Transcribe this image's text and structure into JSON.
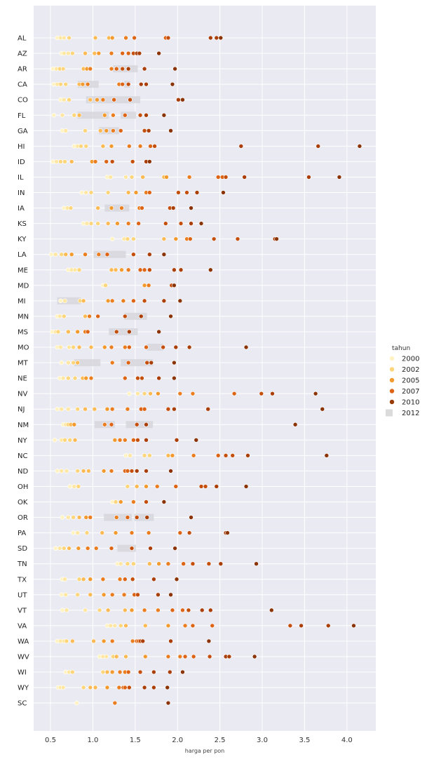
{
  "chart_data": {
    "type": "scatter",
    "xlabel": "harga per pon",
    "ylabel": "",
    "xlim": [
      0.3,
      4.2
    ],
    "xticks": [
      "0.5",
      "1.0",
      "1.5",
      "2.0",
      "2.5",
      "3.0",
      "3.5",
      "4.0"
    ],
    "grid": true,
    "legend_title": "tahun",
    "legend_position": "right",
    "legend": [
      {
        "label": "2000",
        "color": "#fff3c4"
      },
      {
        "label": "2002",
        "color": "#fdd57a"
      },
      {
        "label": "2005",
        "color": "#f39a2e"
      },
      {
        "label": "2007",
        "color": "#dd6414"
      },
      {
        "label": "2010",
        "color": "#9a3a06"
      },
      {
        "label": "2012",
        "color": "#b8b8b8"
      }
    ],
    "colors": {
      "c0": "#fff3c4",
      "c1": "#fee7a3",
      "c2": "#fdd57a",
      "c3": "#fcba55",
      "c4": "#f39a2e",
      "c5": "#ea7d1f",
      "c6": "#dd6414",
      "c7": "#c44f0c",
      "c8": "#a93e07",
      "c9": "#8a3305"
    },
    "categories": [
      "AL",
      "AZ",
      "AR",
      "CA",
      "CO",
      "FL",
      "GA",
      "HI",
      "ID",
      "IL",
      "IN",
      "IA",
      "KS",
      "KY",
      "LA",
      "ME",
      "MD",
      "MI",
      "MN",
      "MS",
      "MO",
      "MT",
      "NE",
      "NV",
      "NJ",
      "NM",
      "NY",
      "NC",
      "ND",
      "OH",
      "OK",
      "OR",
      "PA",
      "SD",
      "TN",
      "TX",
      "UT",
      "VT",
      "VA",
      "WA",
      "WV",
      "WI",
      "WY",
      "SC"
    ],
    "category_labels": [
      "AL",
      "AZ",
      "AR",
      "CA",
      "CO",
      "FL",
      "GA",
      "HI",
      "ID",
      "IL",
      "IN",
      "IA",
      "KS",
      "KY",
      "LA",
      "ME",
      "MD",
      "MI",
      "MN",
      "MS",
      "MO",
      "MT",
      "NE",
      "NV",
      "NJ",
      "NM",
      "NY",
      "NC",
      "ND",
      "OH",
      "OK",
      "OR",
      "PA",
      "SD",
      "TN",
      "TX",
      "UT",
      "VT",
      "VA",
      "WA",
      "WV",
      "WI",
      "WY",
      "SC"
    ],
    "points": [
      {
        "state": "AL",
        "x": [
          0.58,
          0.62,
          0.66,
          0.72,
          1.03,
          1.19,
          1.23,
          1.39,
          1.49,
          1.86,
          1.89,
          2.39,
          2.46,
          2.51
        ]
      },
      {
        "state": "AZ",
        "x": [
          0.63,
          0.66,
          0.71,
          0.76,
          0.91,
          1.02,
          1.07,
          1.22,
          1.35,
          1.42,
          1.48,
          1.52,
          1.55,
          1.78
        ]
      },
      {
        "state": "AR",
        "x": [
          0.53,
          0.57,
          0.61,
          0.65,
          0.89,
          0.93,
          0.97,
          1.22,
          1.28,
          1.35,
          1.42,
          1.61,
          1.97
        ]
      },
      {
        "state": "CA",
        "x": [
          0.54,
          0.58,
          0.62,
          0.68,
          0.84,
          0.88,
          0.94,
          1.31,
          1.35,
          1.42,
          1.57,
          1.63,
          1.94
        ]
      },
      {
        "state": "CO",
        "x": [
          0.62,
          0.66,
          0.72,
          0.97,
          1.05,
          1.12,
          1.25,
          1.44,
          2.01,
          2.06
        ]
      },
      {
        "state": "FL",
        "x": [
          0.54,
          0.64,
          0.78,
          0.84,
          1.14,
          1.24,
          1.38,
          1.56,
          1.63,
          1.84
        ]
      },
      {
        "state": "GA",
        "x": [
          0.64,
          0.68,
          0.91,
          1.09,
          1.16,
          1.24,
          1.33,
          1.61,
          1.66,
          1.92
        ]
      },
      {
        "state": "HI",
        "x": [
          0.78,
          0.82,
          0.86,
          0.92,
          1.12,
          1.22,
          1.43,
          1.56,
          1.68,
          1.73,
          2.75,
          3.66,
          4.15
        ]
      },
      {
        "state": "ID",
        "x": [
          0.53,
          0.57,
          0.62,
          0.67,
          0.75,
          0.99,
          1.03,
          1.16,
          1.23,
          1.47,
          1.63,
          1.67
        ]
      },
      {
        "state": "IL",
        "x": [
          1.17,
          1.21,
          1.39,
          1.46,
          1.59,
          1.84,
          1.87,
          2.14,
          2.48,
          2.53,
          2.57,
          2.79,
          3.55,
          3.91
        ]
      },
      {
        "state": "IN",
        "x": [
          0.87,
          0.92,
          0.98,
          1.18,
          1.42,
          1.51,
          1.63,
          1.67,
          2.01,
          2.11,
          2.23,
          2.54
        ]
      },
      {
        "state": "IA",
        "x": [
          0.66,
          0.7,
          0.74,
          1.06,
          1.22,
          1.34,
          1.55,
          1.58,
          1.91,
          1.95,
          2.16
        ]
      },
      {
        "state": "KS",
        "x": [
          0.89,
          0.93,
          0.98,
          1.06,
          1.18,
          1.29,
          1.42,
          1.54,
          1.86,
          2.04,
          2.16,
          2.28
        ]
      },
      {
        "state": "KY",
        "x": [
          1.23,
          1.37,
          1.41,
          1.48,
          1.84,
          1.98,
          2.11,
          2.15,
          2.43,
          2.71,
          3.15,
          3.17
        ]
      },
      {
        "state": "LA",
        "x": [
          0.51,
          0.56,
          0.63,
          0.68,
          0.75,
          0.91,
          1.07,
          1.17,
          1.48,
          1.67,
          1.84
        ]
      },
      {
        "state": "ME",
        "x": [
          0.71,
          0.75,
          0.79,
          0.84,
          1.22,
          1.27,
          1.34,
          1.42,
          1.56,
          1.61,
          1.67,
          1.96,
          2.04,
          2.39
        ]
      },
      {
        "state": "MD",
        "x": [
          1.12,
          1.15,
          1.61,
          1.66,
          1.93,
          1.96
        ]
      },
      {
        "state": "MI",
        "x": [
          0.62,
          0.67,
          0.85,
          0.89,
          1.18,
          1.23,
          1.36,
          1.48,
          1.61,
          1.84,
          2.03
        ]
      },
      {
        "state": "MN",
        "x": [
          0.58,
          0.61,
          0.66,
          0.91,
          0.96,
          1.06,
          1.38,
          1.57,
          1.92
        ]
      },
      {
        "state": "MS",
        "x": [
          0.52,
          0.56,
          0.59,
          0.71,
          0.82,
          0.91,
          0.94,
          1.28,
          1.43,
          1.78
        ]
      },
      {
        "state": "MO",
        "x": [
          0.58,
          0.62,
          0.72,
          0.77,
          0.84,
          0.98,
          1.14,
          1.22,
          1.38,
          1.43,
          1.63,
          1.83,
          1.98,
          2.14,
          2.81
        ]
      },
      {
        "state": "MT",
        "x": [
          0.63,
          0.71,
          0.77,
          0.82,
          1.23,
          1.42,
          1.64,
          1.69,
          1.96
        ]
      },
      {
        "state": "NE",
        "x": [
          0.61,
          0.65,
          0.71,
          0.79,
          0.88,
          0.92,
          0.98,
          1.38,
          1.53,
          1.58,
          1.78,
          1.96
        ]
      },
      {
        "state": "NV",
        "x": [
          1.43,
          1.53,
          1.61,
          1.68,
          1.77,
          2.03,
          2.18,
          2.67,
          2.99,
          3.12,
          3.63
        ]
      },
      {
        "state": "NJ",
        "x": [
          0.58,
          0.63,
          0.71,
          0.82,
          0.91,
          1.02,
          1.17,
          1.23,
          1.41,
          1.57,
          1.61,
          1.89,
          1.96,
          2.36,
          3.71
        ]
      },
      {
        "state": "NM",
        "x": [
          0.65,
          0.68,
          0.71,
          0.74,
          0.78,
          1.14,
          1.22,
          1.52,
          1.63,
          3.39
        ]
      },
      {
        "state": "NY",
        "x": [
          0.55,
          0.63,
          0.67,
          0.73,
          0.79,
          1.26,
          1.32,
          1.38,
          1.48,
          1.53,
          1.63,
          1.99,
          2.22
        ]
      },
      {
        "state": "NC",
        "x": [
          1.39,
          1.44,
          1.61,
          1.67,
          1.89,
          1.94,
          2.19,
          2.48,
          2.57,
          2.65,
          2.83,
          3.76
        ]
      },
      {
        "state": "ND",
        "x": [
          0.58,
          0.63,
          0.69,
          0.82,
          0.89,
          0.95,
          1.13,
          1.22,
          1.38,
          1.41,
          1.46,
          1.52,
          1.63,
          1.92
        ]
      },
      {
        "state": "OH",
        "x": [
          0.73,
          0.78,
          0.83,
          1.41,
          1.52,
          1.63,
          1.76,
          1.98,
          2.28,
          2.33,
          2.46,
          2.81
        ]
      },
      {
        "state": "OK",
        "x": [
          1.23,
          1.27,
          1.33,
          1.48,
          1.63,
          1.84
        ]
      },
      {
        "state": "OR",
        "x": [
          0.64,
          0.71,
          0.77,
          0.84,
          0.92,
          0.97,
          1.28,
          1.41,
          1.52,
          1.64,
          2.16
        ]
      },
      {
        "state": "PA",
        "x": [
          0.77,
          0.82,
          0.93,
          1.11,
          1.27,
          1.46,
          1.66,
          2.03,
          2.14,
          2.57,
          2.59
        ]
      },
      {
        "state": "SD",
        "x": [
          0.56,
          0.61,
          0.66,
          0.72,
          0.83,
          0.94,
          1.04,
          1.22,
          1.46,
          1.68,
          1.97
        ]
      },
      {
        "state": "TN",
        "x": [
          1.29,
          1.33,
          1.41,
          1.48,
          1.67,
          1.78,
          1.89,
          2.07,
          2.18,
          2.37,
          2.51,
          2.93
        ]
      },
      {
        "state": "TX",
        "x": [
          0.64,
          0.67,
          0.84,
          0.89,
          0.97,
          1.12,
          1.32,
          1.38,
          1.47,
          1.72,
          1.99
        ]
      },
      {
        "state": "UT",
        "x": [
          0.63,
          0.68,
          0.82,
          0.97,
          1.13,
          1.23,
          1.37,
          1.49,
          1.53,
          1.77,
          1.92
        ]
      },
      {
        "state": "VT",
        "x": [
          0.64,
          0.69,
          0.91,
          1.08,
          1.18,
          1.38,
          1.46,
          1.61,
          1.77,
          1.94,
          2.06,
          2.13,
          2.29,
          2.39,
          3.11
        ]
      },
      {
        "state": "VA",
        "x": [
          1.17,
          1.21,
          1.26,
          1.33,
          1.39,
          1.62,
          1.89,
          2.09,
          2.18,
          2.41,
          3.33,
          3.46,
          3.78,
          4.08
        ]
      },
      {
        "state": "WA",
        "x": [
          0.58,
          0.62,
          0.66,
          0.69,
          0.76,
          1.01,
          1.13,
          1.23,
          1.47,
          1.52,
          1.54,
          1.56,
          1.59,
          1.92,
          2.37
        ]
      },
      {
        "state": "WV",
        "x": [
          1.08,
          1.12,
          1.16,
          1.24,
          1.28,
          1.39,
          1.62,
          1.89,
          2.03,
          2.09,
          2.19,
          2.38,
          2.57,
          2.61,
          2.91
        ]
      },
      {
        "state": "WI",
        "x": [
          0.68,
          0.72,
          0.76,
          1.12,
          1.17,
          1.23,
          1.32,
          1.38,
          1.42,
          1.56,
          1.72,
          1.91,
          2.06
        ]
      },
      {
        "state": "WY",
        "x": [
          0.59,
          0.62,
          0.65,
          0.89,
          0.97,
          1.03,
          1.17,
          1.31,
          1.36,
          1.38,
          1.43,
          1.61,
          1.72,
          1.88
        ]
      },
      {
        "state": "SC",
        "x": [
          0.81,
          1.26,
          1.89
        ]
      }
    ],
    "highlight_2012": [
      {
        "state": "AR",
        "x": [
          1.24,
          1.53
        ]
      },
      {
        "state": "CA",
        "x": [
          0.82,
          1.07
        ]
      },
      {
        "state": "CA",
        "x": [
          1.37,
          1.44
        ]
      },
      {
        "state": "CO",
        "x": [
          0.92,
          1.56
        ]
      },
      {
        "state": "FL",
        "x": [
          0.82,
          1.19
        ]
      },
      {
        "state": "FL",
        "x": [
          1.33,
          1.51
        ]
      },
      {
        "state": "GA",
        "x": [
          1.07,
          1.31
        ]
      },
      {
        "state": "IA",
        "x": [
          1.14,
          1.43
        ]
      },
      {
        "state": "LA",
        "x": [
          1.01,
          1.39
        ]
      },
      {
        "state": "MI",
        "x": [
          0.58,
          0.86
        ]
      },
      {
        "state": "MN",
        "x": [
          1.37,
          1.64
        ]
      },
      {
        "state": "MS",
        "x": [
          1.19,
          1.53
        ]
      },
      {
        "state": "MO",
        "x": [
          1.64,
          1.83
        ]
      },
      {
        "state": "MT",
        "x": [
          0.78,
          1.09
        ]
      },
      {
        "state": "MT",
        "x": [
          1.33,
          1.71
        ]
      },
      {
        "state": "NM",
        "x": [
          1.02,
          1.26
        ]
      },
      {
        "state": "NM",
        "x": [
          1.39,
          1.71
        ]
      },
      {
        "state": "OR",
        "x": [
          1.13,
          1.46
        ]
      },
      {
        "state": "OR",
        "x": [
          1.49,
          1.72
        ]
      },
      {
        "state": "SD",
        "x": [
          1.29,
          1.51
        ]
      }
    ]
  }
}
